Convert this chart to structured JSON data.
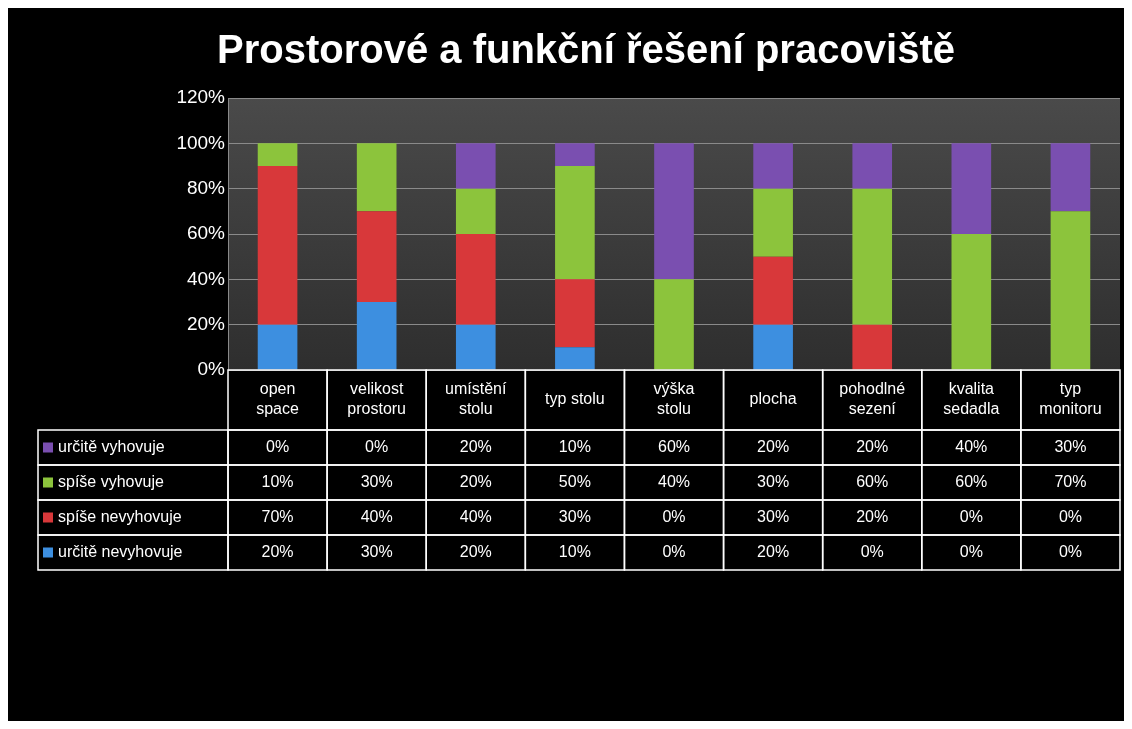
{
  "chart_data": {
    "type": "bar",
    "title": "Prostorové a funkční řešení pracoviště",
    "categories": [
      "open space",
      "velikost prostoru",
      "umístění stolu",
      "typ stolu",
      "výška stolu",
      "plocha",
      "pohodlné sezení",
      "kvalita sedadla",
      "typ monitoru"
    ],
    "stacked": true,
    "series": [
      {
        "name": "určitě nevyhovuje",
        "color": "#3d8fe0",
        "values": [
          20,
          30,
          20,
          10,
          0,
          20,
          0,
          0,
          0
        ],
        "value_labels": [
          "20%",
          "30%",
          "20%",
          "10%",
          "0%",
          "20%",
          "0%",
          "0%",
          "0%"
        ]
      },
      {
        "name": "spíše nevyhovuje",
        "color": "#d8383a",
        "values": [
          70,
          40,
          40,
          30,
          0,
          30,
          20,
          0,
          0
        ],
        "value_labels": [
          "70%",
          "40%",
          "40%",
          "30%",
          "0%",
          "30%",
          "20%",
          "0%",
          "0%"
        ]
      },
      {
        "name": "spíše vyhovuje",
        "color": "#8cc43c",
        "values": [
          10,
          30,
          20,
          50,
          40,
          30,
          60,
          60,
          70
        ],
        "value_labels": [
          "10%",
          "30%",
          "20%",
          "50%",
          "40%",
          "30%",
          "60%",
          "60%",
          "70%"
        ]
      },
      {
        "name": "určitě vyhovuje",
        "color": "#7a4fb0",
        "values": [
          0,
          0,
          20,
          10,
          60,
          20,
          20,
          40,
          30
        ],
        "value_labels": [
          "0%",
          "0%",
          "20%",
          "10%",
          "60%",
          "20%",
          "20%",
          "40%",
          "30%"
        ]
      }
    ],
    "ylim": [
      0,
      120
    ],
    "yticks": [
      {
        "value": 0,
        "label": "0%"
      },
      {
        "value": 20,
        "label": "20%"
      },
      {
        "value": 40,
        "label": "40%"
      },
      {
        "value": 60,
        "label": "60%"
      },
      {
        "value": 80,
        "label": "80%"
      },
      {
        "value": 100,
        "label": "100%"
      },
      {
        "value": 120,
        "label": "120%"
      }
    ],
    "grid": "y",
    "legend": "bottom"
  }
}
